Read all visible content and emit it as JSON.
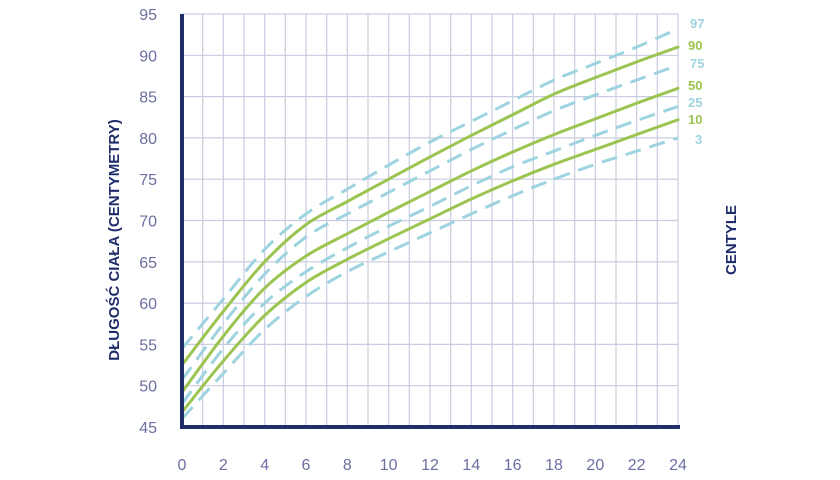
{
  "chart_data": {
    "type": "line",
    "title": "",
    "ylabel": "DŁUGOŚĆ CIAŁA (CENTYMETRY)",
    "xlabel": "",
    "legend_title": "CENTYLE",
    "xlim": [
      0,
      24
    ],
    "ylim": [
      45,
      95
    ],
    "x_ticks": [
      "0",
      "2",
      "4",
      "6",
      "8",
      "10",
      "12",
      "14",
      "16",
      "18",
      "20",
      "22",
      "24"
    ],
    "y_ticks": [
      "45",
      "50",
      "55",
      "60",
      "65",
      "70",
      "75",
      "80",
      "85",
      "90",
      "95"
    ],
    "grid": true,
    "legend_position": "right",
    "x": [
      0,
      2,
      4,
      6,
      8,
      10,
      12,
      14,
      16,
      18,
      20,
      22,
      24
    ],
    "series": [
      {
        "name": "97",
        "style": "dashed",
        "color": "#9ed3e0",
        "values": [
          54.5,
          60.5,
          66.5,
          70.8,
          73.8,
          76.7,
          79.5,
          82.0,
          84.5,
          87.0,
          89.0,
          91.0,
          93.2
        ]
      },
      {
        "name": "90",
        "style": "solid",
        "color": "#9cc451",
        "values": [
          52.5,
          59.0,
          65.0,
          69.5,
          72.3,
          75.0,
          77.7,
          80.3,
          82.8,
          85.3,
          87.3,
          89.2,
          91.0
        ]
      },
      {
        "name": "75",
        "style": "dashed",
        "color": "#9ed3e0",
        "values": [
          50.7,
          57.5,
          63.5,
          68.0,
          70.8,
          73.4,
          76.0,
          78.6,
          81.0,
          83.3,
          85.2,
          87.0,
          88.8
        ]
      },
      {
        "name": "50",
        "style": "solid",
        "color": "#9cc451",
        "values": [
          49.2,
          56.0,
          61.8,
          65.7,
          68.4,
          71.0,
          73.5,
          76.0,
          78.3,
          80.4,
          82.3,
          84.2,
          86.0
        ]
      },
      {
        "name": "25",
        "style": "dashed",
        "color": "#9ed3e0",
        "values": [
          47.8,
          54.5,
          60.0,
          63.8,
          66.7,
          69.3,
          71.7,
          74.2,
          76.5,
          78.4,
          80.3,
          82.1,
          83.8
        ]
      },
      {
        "name": "10",
        "style": "solid",
        "color": "#9cc451",
        "values": [
          46.8,
          53.0,
          58.5,
          62.5,
          65.3,
          67.8,
          70.2,
          72.6,
          74.8,
          76.8,
          78.6,
          80.4,
          82.2
        ]
      },
      {
        "name": "3",
        "style": "dashed",
        "color": "#9ed3e0",
        "values": [
          46.0,
          51.5,
          56.8,
          60.8,
          63.8,
          66.2,
          68.5,
          70.8,
          73.0,
          75.0,
          76.8,
          78.4,
          80.0
        ]
      }
    ]
  }
}
